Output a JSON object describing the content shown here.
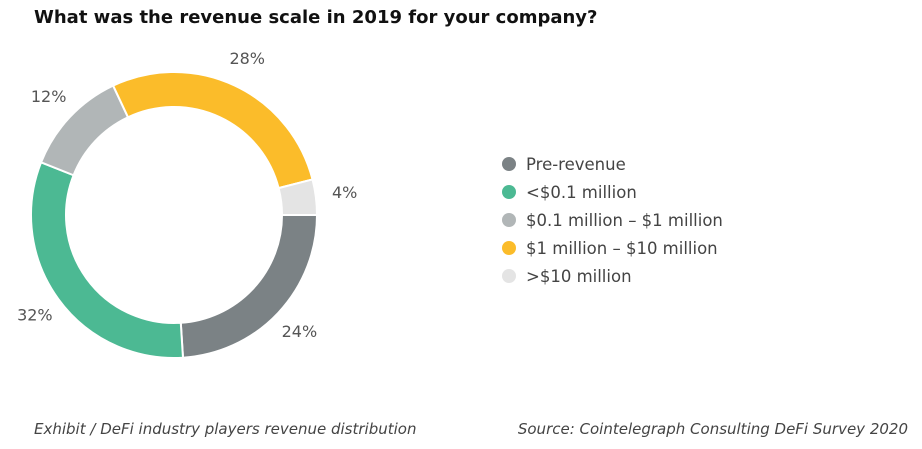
{
  "header": {
    "title": "What was the revenue scale in 2019 for your company?"
  },
  "chart_data": {
    "type": "pie",
    "style": "donut",
    "title": "What was the revenue scale in 2019 for your company?",
    "slices": [
      {
        "label": "Pre-revenue",
        "value": 24,
        "display": "24%",
        "color": "#7b8285"
      },
      {
        "label": "<$0.1 million",
        "value": 32,
        "display": "32%",
        "color": "#4cb993"
      },
      {
        "label": "$0.1 million – $1 million",
        "value": 12,
        "display": "12%",
        "color": "#b1b6b7"
      },
      {
        "label": "$1 million – $10 million",
        "value": 28,
        "display": "28%",
        "color": "#fbbc2a"
      },
      {
        "label": ">$10 million",
        "value": 4,
        "display": "4%",
        "color": "#e4e4e4"
      }
    ],
    "start": "3 o'clock",
    "direction": "clockwise",
    "legend_position": "right"
  },
  "footer": {
    "caption": "Exhibit / DeFi industry players revenue distribution",
    "source": "Source: Cointelegraph Consulting DeFi Survey 2020"
  }
}
